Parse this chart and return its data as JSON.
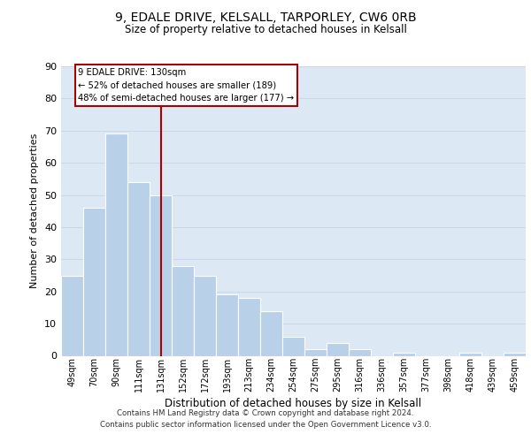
{
  "title1": "9, EDALE DRIVE, KELSALL, TARPORLEY, CW6 0RB",
  "title2": "Size of property relative to detached houses in Kelsall",
  "xlabel": "Distribution of detached houses by size in Kelsall",
  "ylabel": "Number of detached properties",
  "bar_labels": [
    "49sqm",
    "70sqm",
    "90sqm",
    "111sqm",
    "131sqm",
    "152sqm",
    "172sqm",
    "193sqm",
    "213sqm",
    "234sqm",
    "254sqm",
    "275sqm",
    "295sqm",
    "316sqm",
    "336sqm",
    "357sqm",
    "377sqm",
    "398sqm",
    "418sqm",
    "439sqm",
    "459sqm"
  ],
  "bar_values": [
    25,
    46,
    69,
    54,
    50,
    28,
    25,
    19,
    18,
    14,
    6,
    2,
    4,
    2,
    0,
    1,
    0,
    0,
    1,
    0,
    1
  ],
  "bar_color": "#b8d0e8",
  "vline_index": 4,
  "vline_color": "#aa0000",
  "annotation_line1": "9 EDALE DRIVE: 130sqm",
  "annotation_line2": "← 52% of detached houses are smaller (189)",
  "annotation_line3": "48% of semi-detached houses are larger (177) →",
  "ylim": [
    0,
    90
  ],
  "yticks": [
    0,
    10,
    20,
    30,
    40,
    50,
    60,
    70,
    80,
    90
  ],
  "grid_color": "#c8d8ea",
  "background_color": "#dce8f4",
  "footer1": "Contains HM Land Registry data © Crown copyright and database right 2024.",
  "footer2": "Contains public sector information licensed under the Open Government Licence v3.0."
}
